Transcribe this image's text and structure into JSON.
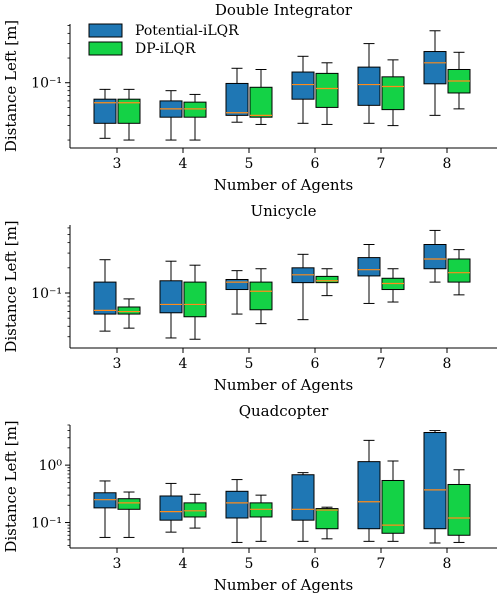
{
  "chart_data": [
    {
      "type": "box",
      "title": "Double Integrator",
      "xlabel": "Number of Agents",
      "ylabel": "Distance Left [m]",
      "yscale": "log",
      "categories": [
        "3",
        "4",
        "5",
        "6",
        "7",
        "8"
      ],
      "yticks": [
        {
          "value": 0.1,
          "label": "10⁻¹"
        }
      ],
      "legend": {
        "position": "top-left",
        "entries": [
          "Potential-iLQR",
          "DP-iLQR"
        ]
      },
      "series": [
        {
          "name": "Potential-iLQR",
          "color": "#1f77b4",
          "boxes": [
            {
              "whislo": 0.021,
              "q1": 0.032,
              "med": 0.057,
              "q3": 0.063,
              "whishi": 0.083
            },
            {
              "whislo": 0.02,
              "q1": 0.038,
              "med": 0.048,
              "q3": 0.06,
              "whishi": 0.08
            },
            {
              "whislo": 0.033,
              "q1": 0.04,
              "med": 0.043,
              "q3": 0.098,
              "whishi": 0.15
            },
            {
              "whislo": 0.032,
              "q1": 0.063,
              "med": 0.095,
              "q3": 0.135,
              "whishi": 0.21
            },
            {
              "whislo": 0.032,
              "q1": 0.053,
              "med": 0.095,
              "q3": 0.155,
              "whishi": 0.3
            },
            {
              "whislo": 0.04,
              "q1": 0.097,
              "med": 0.175,
              "q3": 0.24,
              "whishi": 0.43
            }
          ]
        },
        {
          "name": "DP-iLQR",
          "color": "#14d246",
          "boxes": [
            {
              "whislo": 0.02,
              "q1": 0.032,
              "med": 0.057,
              "q3": 0.063,
              "whishi": 0.083
            },
            {
              "whislo": 0.02,
              "q1": 0.038,
              "med": 0.048,
              "q3": 0.058,
              "whishi": 0.072
            },
            {
              "whislo": 0.031,
              "q1": 0.038,
              "med": 0.04,
              "q3": 0.088,
              "whishi": 0.145
            },
            {
              "whislo": 0.031,
              "q1": 0.05,
              "med": 0.085,
              "q3": 0.13,
              "whishi": 0.175
            },
            {
              "whislo": 0.03,
              "q1": 0.047,
              "med": 0.09,
              "q3": 0.118,
              "whishi": 0.19
            },
            {
              "whislo": 0.048,
              "q1": 0.075,
              "med": 0.105,
              "q3": 0.145,
              "whishi": 0.235
            }
          ]
        }
      ]
    },
    {
      "type": "box",
      "title": "Unicycle",
      "xlabel": "Number of Agents",
      "ylabel": "Distance Left [m]",
      "yscale": "log",
      "categories": [
        "3",
        "4",
        "5",
        "6",
        "7",
        "8"
      ],
      "yticks": [
        {
          "value": 0.1,
          "label": "10⁻¹"
        }
      ],
      "series": [
        {
          "name": "Potential-iLQR",
          "color": "#1f77b4",
          "boxes": [
            {
              "whislo": 0.035,
              "q1": 0.056,
              "med": 0.062,
              "q3": 0.135,
              "whishi": 0.25
            },
            {
              "whislo": 0.029,
              "q1": 0.058,
              "med": 0.073,
              "q3": 0.14,
              "whishi": 0.24
            },
            {
              "whislo": 0.056,
              "q1": 0.11,
              "med": 0.135,
              "q3": 0.145,
              "whishi": 0.185
            },
            {
              "whislo": 0.048,
              "q1": 0.133,
              "med": 0.165,
              "q3": 0.2,
              "whishi": 0.29
            },
            {
              "whislo": 0.075,
              "q1": 0.16,
              "med": 0.19,
              "q3": 0.265,
              "whishi": 0.38
            },
            {
              "whislo": 0.135,
              "q1": 0.195,
              "med": 0.255,
              "q3": 0.38,
              "whishi": 0.56
            }
          ]
        },
        {
          "name": "DP-iLQR",
          "color": "#14d246",
          "boxes": [
            {
              "whislo": 0.038,
              "q1": 0.056,
              "med": 0.06,
              "q3": 0.068,
              "whishi": 0.085
            },
            {
              "whislo": 0.028,
              "q1": 0.052,
              "med": 0.073,
              "q3": 0.135,
              "whishi": 0.215
            },
            {
              "whislo": 0.043,
              "q1": 0.063,
              "med": 0.105,
              "q3": 0.135,
              "whishi": 0.195
            },
            {
              "whislo": 0.093,
              "q1": 0.133,
              "med": 0.14,
              "q3": 0.158,
              "whishi": 0.195
            },
            {
              "whislo": 0.078,
              "q1": 0.11,
              "med": 0.13,
              "q3": 0.15,
              "whishi": 0.195
            },
            {
              "whislo": 0.095,
              "q1": 0.135,
              "med": 0.175,
              "q3": 0.255,
              "whishi": 0.33
            }
          ]
        }
      ]
    },
    {
      "type": "box",
      "title": "Quadcopter",
      "xlabel": "Number of Agents",
      "ylabel": "Distance Left [m]",
      "yscale": "log",
      "categories": [
        "3",
        "4",
        "5",
        "6",
        "7",
        "8"
      ],
      "yticks": [
        {
          "value": 0.1,
          "label": "10⁻¹"
        },
        {
          "value": 1,
          "label": "10⁰"
        }
      ],
      "series": [
        {
          "name": "Potential-iLQR",
          "color": "#1f77b4",
          "boxes": [
            {
              "whislo": 0.055,
              "q1": 0.18,
              "med": 0.25,
              "q3": 0.33,
              "whishi": 0.53
            },
            {
              "whislo": 0.068,
              "q1": 0.11,
              "med": 0.155,
              "q3": 0.29,
              "whishi": 0.48
            },
            {
              "whislo": 0.045,
              "q1": 0.12,
              "med": 0.22,
              "q3": 0.35,
              "whishi": 0.56
            },
            {
              "whislo": 0.047,
              "q1": 0.11,
              "med": 0.17,
              "q3": 0.68,
              "whishi": 0.74
            },
            {
              "whislo": 0.047,
              "q1": 0.078,
              "med": 0.23,
              "q3": 1.15,
              "whishi": 2.7
            },
            {
              "whislo": 0.044,
              "q1": 0.078,
              "med": 0.37,
              "q3": 3.7,
              "whishi": 4.0
            }
          ]
        },
        {
          "name": "DP-iLQR",
          "color": "#14d246",
          "boxes": [
            {
              "whislo": 0.055,
              "q1": 0.17,
              "med": 0.22,
              "q3": 0.26,
              "whishi": 0.34
            },
            {
              "whislo": 0.08,
              "q1": 0.125,
              "med": 0.16,
              "q3": 0.22,
              "whishi": 0.31
            },
            {
              "whislo": 0.047,
              "q1": 0.125,
              "med": 0.17,
              "q3": 0.22,
              "whishi": 0.3
            },
            {
              "whislo": 0.052,
              "q1": 0.078,
              "med": 0.165,
              "q3": 0.175,
              "whishi": 0.185
            },
            {
              "whislo": 0.047,
              "q1": 0.065,
              "med": 0.09,
              "q3": 0.54,
              "whishi": 1.18
            },
            {
              "whislo": 0.045,
              "q1": 0.06,
              "med": 0.12,
              "q3": 0.46,
              "whishi": 0.83
            }
          ]
        }
      ]
    }
  ]
}
